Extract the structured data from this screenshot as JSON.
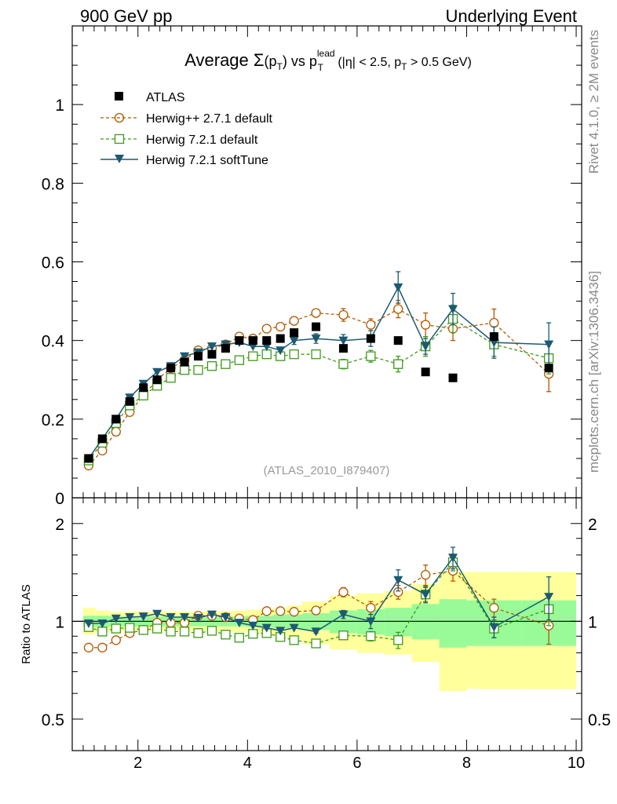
{
  "header": {
    "left": "900 GeV pp",
    "right": "Underlying Event",
    "side_top": "Rivet 4.1.0, ≥ 2M events",
    "side_bottom": "mcplots.cern.ch [arXiv:1306.3436]",
    "watermark": "(ATLAS_2010_I879407)"
  },
  "colors": {
    "atlas": "#000000",
    "herwigpp": "#b35900",
    "herwig721": "#3d9a1a",
    "softtune": "#1c5a72",
    "band_inner": "#98fb98",
    "band_outer": "#ffff9c",
    "axis": "#000000"
  },
  "chart_data": [
    {
      "type": "scatter",
      "panel": "main",
      "title": {
        "prefix": "Average ",
        "sigma": "Σ",
        "pt_open": "(p",
        "sub_t": "T",
        "pt_close": ")",
        "vs": " vs p",
        "sup_lead": "lead",
        "sub_t2": "T",
        "cut1": " (|η| < 2.5, p",
        "sub_t3": "T",
        "cut2": " > 0.5 GeV)"
      },
      "xlim": [
        0.8,
        10.1
      ],
      "ylim": [
        0.0,
        1.2
      ],
      "yticks": [
        0,
        0.2,
        0.4,
        0.6,
        0.8,
        1
      ],
      "ytick_labels": [
        "0",
        "0.2",
        "0.4",
        "0.6",
        "0.8",
        "1"
      ],
      "x": [
        1.1,
        1.35,
        1.6,
        1.85,
        2.1,
        2.35,
        2.6,
        2.85,
        3.1,
        3.35,
        3.6,
        3.85,
        4.1,
        4.35,
        4.6,
        4.85,
        5.25,
        5.75,
        6.25,
        6.75,
        7.25,
        7.75,
        8.5,
        9.5
      ],
      "series": [
        {
          "name": "ATLAS",
          "style": "data",
          "values": [
            0.1,
            0.15,
            0.2,
            0.245,
            0.28,
            0.3,
            0.33,
            0.345,
            0.36,
            0.365,
            0.38,
            0.4,
            0.4,
            0.4,
            0.405,
            0.42,
            0.435,
            0.38,
            0.405,
            0.4,
            0.32,
            0.305,
            0.41,
            0.33
          ]
        },
        {
          "name": "Herwig++ 2.7.1 default",
          "style": "circle",
          "values": [
            0.082,
            0.12,
            0.168,
            0.218,
            0.26,
            0.3,
            0.33,
            0.35,
            0.375,
            0.38,
            0.39,
            0.41,
            0.405,
            0.43,
            0.435,
            0.45,
            0.47,
            0.465,
            0.44,
            0.48,
            0.44,
            0.43,
            0.445,
            0.315
          ],
          "errors": [
            0,
            0,
            0,
            0,
            0,
            0,
            0,
            0,
            0,
            0,
            0,
            0,
            0,
            0,
            0,
            0.01,
            0.01,
            0.016,
            0.015,
            0.022,
            0.03,
            0.03,
            0.035,
            0.045
          ]
        },
        {
          "name": "Herwig 7.2.1 default",
          "style": "square",
          "values": [
            0.095,
            0.14,
            0.19,
            0.235,
            0.26,
            0.285,
            0.305,
            0.325,
            0.325,
            0.335,
            0.34,
            0.35,
            0.36,
            0.365,
            0.36,
            0.365,
            0.365,
            0.34,
            0.36,
            0.34,
            0.385,
            0.455,
            0.39,
            0.355
          ],
          "errors": [
            0,
            0,
            0,
            0,
            0,
            0,
            0,
            0,
            0,
            0,
            0,
            0,
            0,
            0,
            0,
            0.01,
            0.01,
            0.012,
            0.015,
            0.02,
            0.025,
            0.035,
            0.03,
            0.04
          ]
        },
        {
          "name": "Herwig 7.2.1 softTune",
          "style": "triangle",
          "values": [
            0.1,
            0.15,
            0.2,
            0.255,
            0.29,
            0.32,
            0.335,
            0.36,
            0.37,
            0.385,
            0.39,
            0.395,
            0.385,
            0.385,
            0.375,
            0.4,
            0.405,
            0.4,
            0.405,
            0.535,
            0.385,
            0.48,
            0.395,
            0.39
          ],
          "errors": [
            0,
            0,
            0,
            0,
            0,
            0,
            0,
            0,
            0,
            0,
            0,
            0,
            0,
            0,
            0,
            0.01,
            0.012,
            0.015,
            0.02,
            0.04,
            0.02,
            0.04,
            0.04,
            0.055
          ]
        }
      ],
      "legend": [
        "ATLAS",
        "Herwig++ 2.7.1 default",
        "Herwig 7.2.1 default",
        "Herwig 7.2.1 softTune"
      ],
      "legend_position": "top-left"
    },
    {
      "type": "scatter",
      "panel": "ratio",
      "ylabel": "Ratio to ATLAS",
      "xlim": [
        0.8,
        10.1
      ],
      "ylim": [
        0.4,
        2.4
      ],
      "yscale": "log",
      "yticks": [
        0.5,
        1,
        2
      ],
      "ytick_labels": [
        "0.5",
        "1",
        "2"
      ],
      "xticks": [
        2,
        4,
        6,
        8,
        10
      ],
      "xtick_labels": [
        "2",
        "4",
        "6",
        "8",
        "10"
      ],
      "reference_line": 1,
      "bands": {
        "edges": [
          1.0,
          1.225,
          1.475,
          1.725,
          1.975,
          2.225,
          2.475,
          2.725,
          2.975,
          3.225,
          3.475,
          3.725,
          3.975,
          4.225,
          4.475,
          4.725,
          5.0,
          5.5,
          6.0,
          6.5,
          7.0,
          7.5,
          8.0,
          9.0,
          10.0
        ],
        "inner": [
          [
            0.96,
            1.04
          ],
          [
            0.96,
            1.04
          ],
          [
            0.965,
            1.035
          ],
          [
            0.965,
            1.035
          ],
          [
            0.965,
            1.035
          ],
          [
            0.965,
            1.035
          ],
          [
            0.965,
            1.035
          ],
          [
            0.965,
            1.035
          ],
          [
            0.965,
            1.035
          ],
          [
            0.965,
            1.035
          ],
          [
            0.965,
            1.035
          ],
          [
            0.965,
            1.035
          ],
          [
            0.96,
            1.04
          ],
          [
            0.96,
            1.04
          ],
          [
            0.95,
            1.05
          ],
          [
            0.95,
            1.05
          ],
          [
            0.94,
            1.06
          ],
          [
            0.92,
            1.08
          ],
          [
            0.91,
            1.09
          ],
          [
            0.9,
            1.1
          ],
          [
            0.88,
            1.13
          ],
          [
            0.83,
            1.17
          ],
          [
            0.84,
            1.16
          ],
          [
            0.84,
            1.16
          ]
        ],
        "outer": [
          [
            0.91,
            1.1
          ],
          [
            0.93,
            1.08
          ],
          [
            0.935,
            1.07
          ],
          [
            0.935,
            1.07
          ],
          [
            0.935,
            1.07
          ],
          [
            0.935,
            1.07
          ],
          [
            0.935,
            1.07
          ],
          [
            0.935,
            1.07
          ],
          [
            0.935,
            1.07
          ],
          [
            0.93,
            1.075
          ],
          [
            0.93,
            1.075
          ],
          [
            0.925,
            1.08
          ],
          [
            0.92,
            1.085
          ],
          [
            0.91,
            1.09
          ],
          [
            0.9,
            1.1
          ],
          [
            0.88,
            1.12
          ],
          [
            0.85,
            1.15
          ],
          [
            0.82,
            1.2
          ],
          [
            0.8,
            1.22
          ],
          [
            0.79,
            1.24
          ],
          [
            0.75,
            1.3
          ],
          [
            0.61,
            1.42
          ],
          [
            0.62,
            1.42
          ],
          [
            0.62,
            1.42
          ]
        ]
      },
      "series": [
        {
          "name": "Herwig++ 2.7.1 default",
          "style": "circle",
          "values": [
            0.83,
            0.83,
            0.875,
            0.92,
            0.94,
            0.99,
            0.99,
            0.99,
            1.04,
            1.04,
            1.03,
            1.02,
            1.01,
            1.075,
            1.075,
            1.07,
            1.08,
            1.23,
            1.1,
            1.23,
            1.39,
            1.43,
            1.1,
            0.97
          ],
          "errors": [
            0,
            0,
            0,
            0,
            0,
            0,
            0,
            0,
            0,
            0,
            0,
            0,
            0,
            0,
            0,
            0,
            0.02,
            0.04,
            0.05,
            0.06,
            0.1,
            0.1,
            0.07,
            0.12
          ]
        },
        {
          "name": "Herwig 7.2.1 default",
          "style": "square",
          "values": [
            0.96,
            0.93,
            0.95,
            0.955,
            0.94,
            0.95,
            0.93,
            0.93,
            0.92,
            0.935,
            0.91,
            0.89,
            0.915,
            0.92,
            0.895,
            0.875,
            0.855,
            0.905,
            0.9,
            0.875,
            1.21,
            1.52,
            0.95,
            1.09
          ],
          "errors": [
            0,
            0,
            0,
            0,
            0,
            0,
            0,
            0,
            0,
            0,
            0,
            0,
            0,
            0,
            0,
            0,
            0.01,
            0.02,
            0.03,
            0.05,
            0.06,
            0.09,
            0.06,
            0.12
          ]
        },
        {
          "name": "Herwig 7.2.1 softTune",
          "style": "triangle",
          "values": [
            0.985,
            0.985,
            1.02,
            1.03,
            1.035,
            1.055,
            1.03,
            1.03,
            1.025,
            1.05,
            1.03,
            0.99,
            0.97,
            0.955,
            0.935,
            0.955,
            0.93,
            1.05,
            1.0,
            1.34,
            1.21,
            1.57,
            0.96,
            1.19
          ],
          "errors": [
            0,
            0,
            0,
            0,
            0,
            0,
            0,
            0,
            0,
            0,
            0,
            0,
            0,
            0,
            0,
            0,
            0.01,
            0.03,
            0.05,
            0.1,
            0.07,
            0.12,
            0.07,
            0.18
          ]
        }
      ]
    }
  ]
}
